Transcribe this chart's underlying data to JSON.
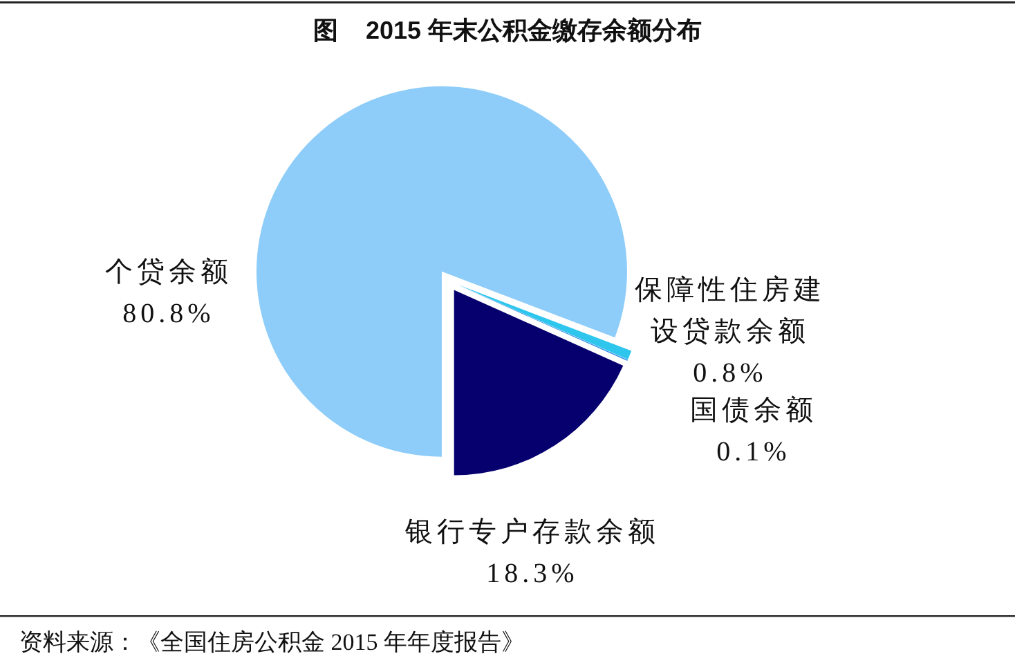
{
  "chart_data": {
    "type": "pie",
    "title": "图    2015 年末公积金缴存余额分布",
    "categories": [
      "个贷余额",
      "保障性住房建设贷款余额",
      "国债余额",
      "银行专户存款余额"
    ],
    "values": [
      80.8,
      0.8,
      0.1,
      18.3
    ],
    "colors": [
      "#8ecdf9",
      "#2fc6ee",
      "#2f8fe8",
      "#06006f"
    ],
    "value_labels": [
      "80.8%",
      "0.8%",
      "0.1%",
      "18.3%"
    ],
    "annotations": [
      "资料来源：《全国住房公积金 2015 年年度报告》"
    ]
  }
}
